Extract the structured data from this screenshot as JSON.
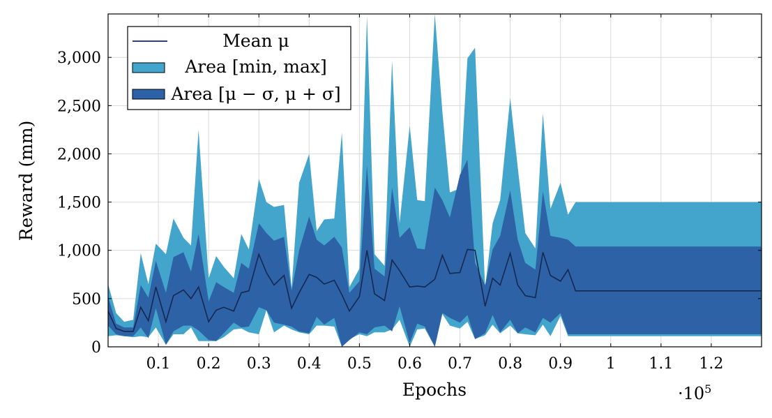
{
  "chart_data": {
    "type": "area",
    "xlabel": "Epochs",
    "ylabel": "Reward (mm)",
    "x_multiplier_label": "·10",
    "x_multiplier_exp": "5",
    "xlim": [
      0,
      1.3
    ],
    "ylim": [
      0,
      3450
    ],
    "grid": true,
    "legend_position": "top-left",
    "x_ticks": [
      "0.1",
      "0.2",
      "0.3",
      "0.4",
      "0.5",
      "0.6",
      "0.7",
      "0.8",
      "0.9",
      "1",
      "1.1",
      "1.2"
    ],
    "x_tick_values": [
      0.1,
      0.2,
      0.3,
      0.4,
      0.5,
      0.6,
      0.7,
      0.8,
      0.9,
      1.0,
      1.1,
      1.2
    ],
    "y_ticks": [
      "0",
      "500",
      "1,000",
      "1,500",
      "2,000",
      "2,500",
      "3,000"
    ],
    "y_tick_values": [
      0,
      500,
      1000,
      1500,
      2000,
      2500,
      3000
    ],
    "colors": {
      "minmax": "#44a5cc",
      "std": "#2d62a6",
      "mean": "#152850"
    },
    "legend": [
      {
        "key": "mean",
        "label": "Mean μ"
      },
      {
        "key": "minmax",
        "label": "Area [min, max]"
      },
      {
        "key": "std",
        "label": "Area [μ − σ, μ + σ]"
      }
    ],
    "x": [
      0,
      0.016,
      0.032,
      0.05,
      0.065,
      0.08,
      0.095,
      0.115,
      0.13,
      0.15,
      0.165,
      0.18,
      0.2,
      0.215,
      0.23,
      0.25,
      0.265,
      0.28,
      0.3,
      0.315,
      0.33,
      0.35,
      0.365,
      0.38,
      0.4,
      0.415,
      0.43,
      0.45,
      0.465,
      0.48,
      0.5,
      0.515,
      0.53,
      0.55,
      0.565,
      0.58,
      0.6,
      0.615,
      0.63,
      0.65,
      0.665,
      0.68,
      0.7,
      0.715,
      0.73,
      0.75,
      0.765,
      0.78,
      0.8,
      0.815,
      0.83,
      0.85,
      0.865,
      0.88,
      0.9,
      0.915,
      0.93,
      0.95,
      0.965,
      0.98,
      1.0,
      1.015,
      1.03,
      1.05,
      1.065,
      1.08,
      1.1,
      1.115,
      1.13,
      1.15,
      1.165,
      1.18,
      1.2,
      1.215,
      1.23,
      1.25,
      1.265,
      1.28,
      1.3
    ],
    "max": [
      650,
      350,
      260,
      280,
      970,
      650,
      1070,
      960,
      1330,
      1130,
      1050,
      2250,
      710,
      940,
      830,
      710,
      1170,
      1010,
      1740,
      1500,
      1450,
      1470,
      610,
      1700,
      2000,
      1200,
      1320,
      1330,
      2220,
      620,
      810,
      3430,
      960,
      840,
      2970,
      1280,
      2290,
      1520,
      1510,
      3450,
      2440,
      1600,
      1640,
      2990,
      3100,
      610,
      1280,
      1520,
      2580,
      1860,
      1180,
      1020,
      2420,
      1430,
      1700,
      1370,
      1500,
      1500,
      1500,
      1500,
      1500,
      1500,
      1500,
      1500,
      1500,
      1500,
      1500,
      1500,
      1500,
      1500,
      1500,
      1500,
      1500,
      1500,
      1500,
      1500,
      1500,
      1500,
      1500
    ],
    "upper": [
      520,
      240,
      200,
      200,
      640,
      510,
      890,
      560,
      930,
      980,
      780,
      1170,
      470,
      670,
      620,
      560,
      870,
      810,
      1280,
      1180,
      1100,
      1140,
      580,
      1000,
      1350,
      1110,
      1050,
      1140,
      1030,
      560,
      680,
      1880,
      810,
      730,
      1650,
      1130,
      1240,
      1020,
      1010,
      1650,
      1520,
      1340,
      1780,
      1940,
      870,
      640,
      1010,
      1150,
      1620,
      1110,
      870,
      800,
      1610,
      1150,
      1130,
      1110,
      1040,
      1040,
      1040,
      1040,
      1040,
      1040,
      1040,
      1040,
      1040,
      1040,
      1040,
      1040,
      1040,
      1040,
      1040,
      1040,
      1040,
      1040,
      1040,
      1040,
      1040,
      1040,
      1040
    ],
    "mean": [
      370,
      190,
      160,
      160,
      410,
      270,
      620,
      260,
      530,
      590,
      500,
      620,
      260,
      380,
      410,
      370,
      560,
      580,
      960,
      770,
      640,
      740,
      400,
      560,
      750,
      720,
      650,
      690,
      540,
      370,
      520,
      1000,
      550,
      480,
      900,
      790,
      620,
      630,
      620,
      700,
      950,
      760,
      770,
      1010,
      1000,
      420,
      710,
      640,
      970,
      640,
      530,
      510,
      980,
      740,
      680,
      800,
      580,
      580,
      580,
      580,
      580,
      580,
      580,
      580,
      580,
      580,
      580,
      580,
      580,
      580,
      580,
      580,
      580,
      580,
      580,
      580,
      580,
      580,
      580
    ],
    "lower": [
      220,
      130,
      110,
      110,
      200,
      90,
      400,
      20,
      160,
      220,
      220,
      170,
      70,
      60,
      140,
      250,
      200,
      210,
      410,
      380,
      250,
      230,
      210,
      160,
      140,
      310,
      230,
      300,
      0,
      70,
      150,
      130,
      200,
      220,
      160,
      420,
      40,
      240,
      210,
      0,
      350,
      300,
      250,
      330,
      80,
      140,
      330,
      150,
      280,
      140,
      200,
      150,
      300,
      250,
      350,
      130,
      130,
      130,
      130,
      130,
      130,
      130,
      130,
      130,
      130,
      130,
      130,
      130,
      130,
      130,
      130,
      130,
      130,
      130,
      130,
      130,
      130,
      130,
      130
    ],
    "min": [
      110,
      120,
      110,
      100,
      110,
      100,
      200,
      20,
      130,
      130,
      200,
      60,
      60,
      60,
      100,
      180,
      190,
      150,
      130,
      380,
      150,
      220,
      180,
      150,
      130,
      220,
      220,
      210,
      0,
      80,
      130,
      110,
      150,
      150,
      180,
      280,
      0,
      180,
      190,
      0,
      340,
      220,
      190,
      260,
      80,
      120,
      230,
      140,
      220,
      140,
      130,
      120,
      230,
      110,
      320,
      110,
      110,
      110,
      110,
      110,
      110,
      110,
      110,
      110,
      110,
      110,
      110,
      110,
      110,
      110,
      110,
      110,
      110,
      110,
      110,
      110,
      110,
      110,
      110
    ]
  }
}
